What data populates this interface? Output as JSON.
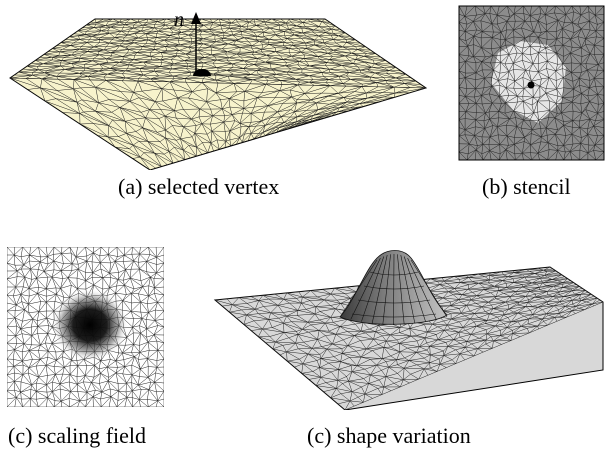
{
  "panels": {
    "a": {
      "caption": "(a) selected vertex",
      "normal_label": "n"
    },
    "b": {
      "caption": "(b) stencil"
    },
    "c": {
      "caption": "(c) scaling field"
    },
    "d": {
      "caption": "(c) shape variation"
    }
  },
  "colors": {
    "plane_fill": "#f7f3cc",
    "mesh_line": "#1a1a1a",
    "stencil_bg": "#8c8c8c",
    "stencil_region": "#e6e6e6",
    "hill_surface": "#d8d8d8"
  }
}
